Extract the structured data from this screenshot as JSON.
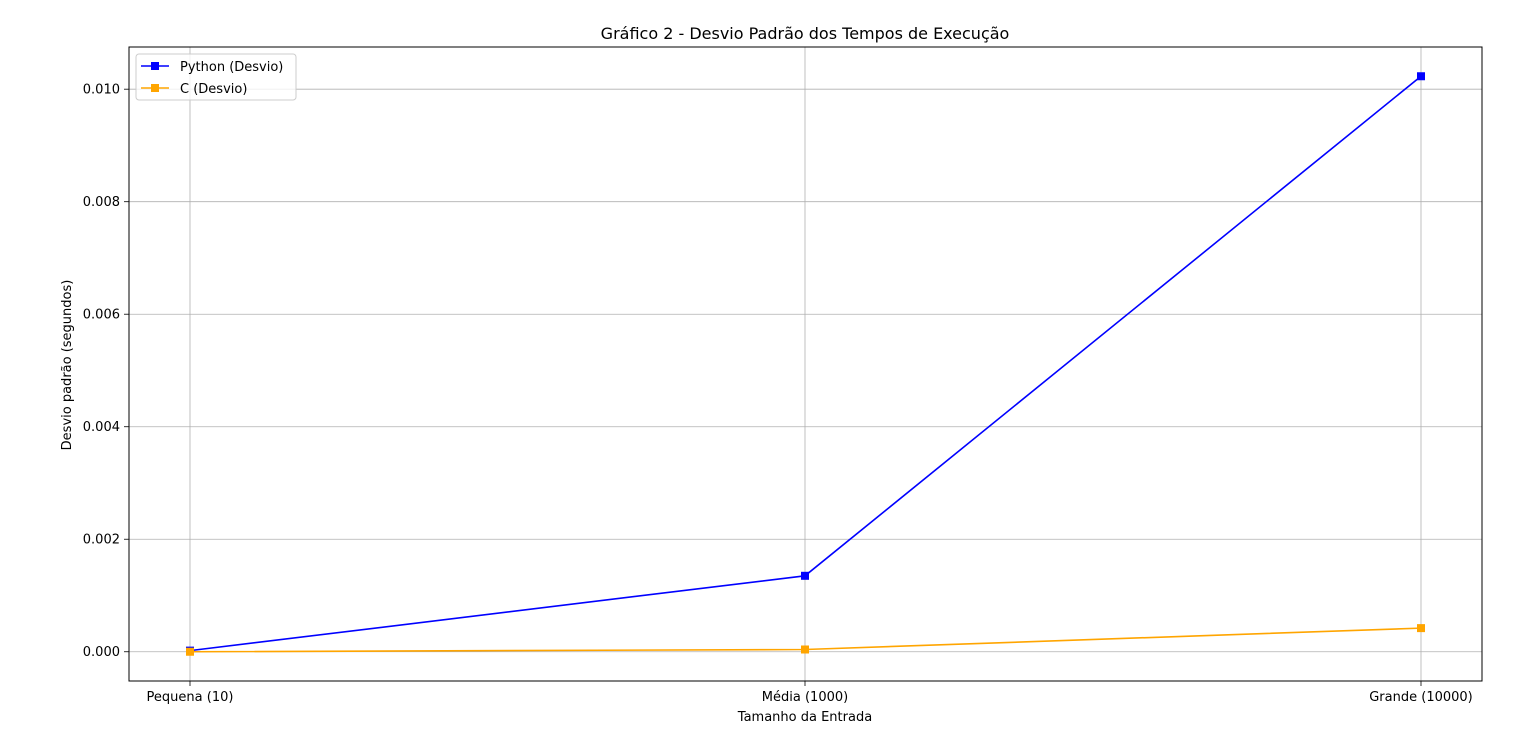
{
  "chart_data": {
    "type": "line",
    "title": "Gráfico 2 - Desvio Padrão dos Tempos de Execução",
    "xlabel": "Tamanho da Entrada",
    "ylabel": "Desvio padrão (segundos)",
    "categories": [
      "Pequena (10)",
      "Média (1000)",
      "Grande (10000)"
    ],
    "yticks": [
      "0.000",
      "0.002",
      "0.004",
      "0.006",
      "0.008",
      "0.010"
    ],
    "ylim": [
      -0.00052,
      0.01075
    ],
    "grid": true,
    "legend_position": "top-left",
    "marker": "square",
    "series": [
      {
        "name": "Python (Desvio)",
        "color": "#0000ff",
        "values": [
          2e-05,
          0.00135,
          0.01023
        ]
      },
      {
        "name": "C (Desvio)",
        "color": "#ffa500",
        "values": [
          0.0,
          4e-05,
          0.00042
        ]
      }
    ]
  }
}
